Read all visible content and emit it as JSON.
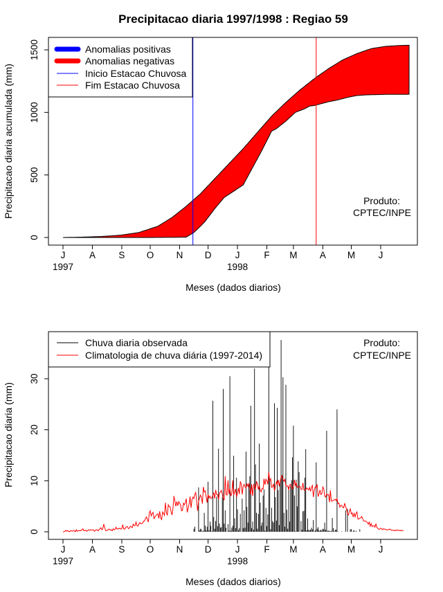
{
  "chart_data": [
    {
      "type": "area",
      "title": "Precipitacao diaria 1997/1998 : Regiao 59",
      "xlabel": "Meses (dados diarios)",
      "ylabel": "Precipitacao diaria acumulada (mm)",
      "ylim": [
        0,
        1500
      ],
      "yticks": [
        "0",
        "500",
        "1000",
        "1500"
      ],
      "month_ticks": [
        "J",
        "A",
        "S",
        "O",
        "N",
        "D",
        "J",
        "F",
        "M",
        "A",
        "M",
        "J"
      ],
      "year_labels": [
        "1997",
        "1998"
      ],
      "day_range": [
        0,
        365
      ],
      "legend": {
        "position": "top-left",
        "entries": [
          "Anomalias positivas",
          "Anomalias negativas",
          "Inicio Estacao Chuvosa",
          "Fim Estacao Chuvosa"
        ],
        "colors": [
          "#0000ff",
          "#ff0000",
          "#0000ff",
          "#ff0000"
        ]
      },
      "annotation": [
        "Produto:",
        "CPTEC/INPE"
      ],
      "inicio_estacao_day": 137,
      "fim_estacao_day": 267,
      "series": [
        {
          "name": "Climatologia acumulada",
          "x": [
            0,
            20,
            40,
            60,
            80,
            100,
            115,
            130,
            145,
            160,
            175,
            190,
            205,
            220,
            235,
            250,
            265,
            280,
            295,
            310,
            325,
            340,
            355,
            365
          ],
          "values": [
            0,
            3,
            8,
            18,
            40,
            90,
            160,
            250,
            350,
            470,
            590,
            710,
            840,
            970,
            1080,
            1180,
            1270,
            1350,
            1420,
            1470,
            1510,
            1528,
            1535,
            1537
          ]
        },
        {
          "name": "Observado acumulado",
          "x": [
            0,
            90,
            110,
            130,
            138,
            145,
            150,
            160,
            170,
            180,
            190,
            200,
            210,
            220,
            225,
            235,
            245,
            255,
            260,
            265,
            270,
            280,
            290,
            300,
            310,
            320,
            330,
            340,
            365
          ],
          "values": [
            0,
            0,
            1,
            3,
            40,
            90,
            130,
            230,
            320,
            370,
            420,
            560,
            700,
            850,
            870,
            930,
            1000,
            1030,
            1050,
            1055,
            1065,
            1085,
            1100,
            1120,
            1135,
            1140,
            1142,
            1144,
            1145
          ]
        }
      ]
    },
    {
      "type": "line",
      "xlabel": "Meses (dados diarios)",
      "ylabel": "Precipitacao diaria (mm)",
      "ylim": [
        0,
        38
      ],
      "yticks": [
        "0",
        "10",
        "20",
        "30"
      ],
      "month_ticks": [
        "J",
        "A",
        "S",
        "O",
        "N",
        "D",
        "J",
        "F",
        "M",
        "A",
        "M",
        "J"
      ],
      "year_labels": [
        "1997",
        "1998"
      ],
      "legend": {
        "position": "top-left",
        "entries": [
          "Chuva diaria observada",
          "Climatologia de chuva diária (1997-2014)"
        ],
        "colors": [
          "#000000",
          "#ff0000"
        ]
      },
      "annotation": [
        "Produto:",
        "CPTEC/INPE"
      ],
      "series": [
        {
          "name": "Chuva diaria observada",
          "color": "#000000",
          "values": [
            0,
            0,
            0,
            0,
            0,
            0,
            0,
            0,
            0,
            0,
            0,
            0,
            0,
            0,
            0,
            0,
            0,
            0,
            0,
            0,
            0,
            0,
            0,
            0,
            0,
            0,
            0,
            0,
            0,
            0,
            0,
            0,
            0,
            0,
            0,
            0,
            0,
            0,
            0,
            0,
            0,
            0,
            0,
            0,
            0,
            0,
            0,
            0,
            0,
            0,
            0,
            0,
            0,
            0,
            0,
            0,
            0,
            0,
            0,
            0,
            0,
            0,
            0,
            0,
            0,
            0,
            0,
            0,
            0,
            0,
            0,
            0,
            0,
            0,
            0,
            0,
            0,
            0,
            0,
            0,
            0,
            0,
            0,
            0,
            0,
            0,
            0,
            0,
            0,
            0,
            0,
            0,
            0,
            0,
            0,
            0,
            0,
            0,
            0,
            0,
            0,
            0,
            0,
            0,
            0,
            0,
            0,
            0,
            0,
            0,
            0,
            0,
            0,
            0,
            0,
            0,
            0,
            0,
            0,
            0,
            0,
            0,
            0,
            0,
            0,
            0,
            0,
            0,
            0,
            0,
            0,
            0,
            0,
            0,
            0,
            0,
            0,
            0,
            0.6,
            1.0,
            0,
            0,
            0,
            8.7,
            0.3,
            0.6,
            0.5,
            0.1,
            0.2,
            3.7,
            1.2,
            0.3,
            1.0,
            9.8,
            0.3,
            2.0,
            1.2,
            0.1,
            25.7,
            2.9,
            0.6,
            2.1,
            6.9,
            1.1,
            16.3,
            1.6,
            0.8,
            0.9,
            6.8,
            28.0,
            1.6,
            4.2,
            0.8,
            0,
            1.5,
            0.2,
            30.5,
            0.2,
            0.8,
            1.2,
            14.9,
            2.6,
            0.7,
            10.6,
            4.4,
            0.3,
            0.7,
            3.5,
            0,
            6.5,
            0.7,
            4.2,
            0.8,
            15.7,
            4.9,
            1.8,
            9.3,
            10.9,
            24.7,
            0.7,
            2.0,
            0.4,
            32.0,
            13.2,
            3.7,
            0.6,
            3.5,
            17.3,
            5.7,
            1.2,
            1.8,
            7.1,
            8.3,
            0.2,
            4.7,
            1.1,
            3.4,
            38.0,
            10.2,
            0.5,
            4.7,
            2.1,
            1.8,
            25.2,
            6.8,
            2.2,
            24.3,
            8.2,
            1.3,
            10.0,
            37.6,
            11.1,
            30.3,
            3.7,
            1.0,
            28.8,
            4.3,
            0.6,
            8.8,
            2.0,
            9.0,
            10.1,
            14.6,
            20.8,
            7.1,
            0.1,
            10.2,
            5.0,
            13.8,
            11.7,
            0,
            2.1,
            0.4,
            4.0,
            4.1,
            10.6,
            16.2,
            0.3,
            2.6,
            0.4,
            0.3,
            0.4,
            0.8,
            0.5,
            2.3,
            0.1,
            0.3,
            13.6,
            0.6,
            0.9,
            0.3,
            0.2,
            0.4,
            0.3,
            0.6,
            0.5,
            1.8,
            0.4,
            19.8,
            0.2,
            0.2,
            0.2,
            0.1,
            0.2,
            2.7,
            0.7,
            0.1,
            0.4,
            0.4,
            24.0,
            0.1,
            0,
            0,
            0,
            0.1,
            0,
            0,
            0,
            4.2,
            0,
            4.5,
            0,
            0,
            0.5,
            0.5,
            0,
            0.2,
            0.3,
            0,
            0.2,
            0,
            0,
            0,
            0.5,
            0,
            0,
            0,
            0,
            0,
            0,
            0,
            0,
            0,
            0
          ]
        },
        {
          "name": "Climatologia de chuva diária (1997-2014)",
          "color": "#ff0000",
          "values": [
            0,
            0,
            0.1,
            0.3,
            0.1,
            0.2,
            0.1,
            0,
            0.2,
            0.2,
            0.1,
            0.2,
            0.2,
            0,
            0.4,
            0.1,
            0.2,
            0.2,
            0.2,
            0.2,
            0.4,
            0.6,
            0.2,
            0.2,
            0.3,
            0.1,
            0.2,
            0.4,
            0.3,
            0.4,
            0.3,
            0.4,
            0.4,
            0.1,
            0.2,
            0.4,
            0.4,
            0.2,
            0.4,
            0.6,
            0.8,
            0.4,
            0.6,
            1.5,
            0.8,
            0.2,
            0.2,
            0.3,
            0.5,
            0.5,
            0.3,
            0.4,
            0.2,
            0.6,
            0.4,
            0.5,
            0.9,
            0.5,
            0.6,
            0.6,
            0.7,
            0.5,
            0.6,
            1.4,
            0.6,
            0.5,
            0.8,
            1.0,
            1.0,
            0.6,
            0.7,
            1.1,
            1.0,
            0.8,
            1.5,
            1.2,
            1.2,
            1.9,
            1.2,
            1.1,
            1.5,
            1.8,
            1.6,
            1.6,
            1.7,
            2.1,
            2.1,
            2.6,
            2.9,
            2.4,
            1.9,
            3.7,
            4.1,
            3.1,
            3.6,
            3.8,
            2.6,
            2.9,
            3.2,
            3.4,
            3.5,
            2.6,
            4.0,
            2.7,
            2.4,
            3.9,
            3.6,
            3.2,
            5.7,
            3.8,
            3.2,
            5.3,
            4.9,
            4.9,
            3.9,
            3.3,
            4.6,
            7.0,
            6.0,
            5.0,
            5.9,
            5.1,
            5.9,
            5.6,
            5.3,
            4.1,
            4.2,
            5.6,
            5.3,
            5.7,
            6.5,
            3.8,
            4.6,
            5.4,
            6.9,
            4.7,
            6.2,
            6.8,
            6.5,
            7.3,
            7.7,
            5.8,
            4.1,
            6.0,
            6.6,
            7.2,
            6.7,
            5.5,
            8.8,
            7.8,
            8.0,
            6.8,
            5.7,
            7.3,
            6.6,
            7.0,
            6.5,
            6.6,
            7.2,
            7.6,
            6.5,
            8.2,
            7.3,
            7.3,
            6.3,
            7.6,
            7.8,
            8.1,
            7.3,
            6.6,
            6.2,
            10.9,
            7.3,
            7.2,
            10.1,
            7.4,
            8.5,
            7.0,
            7.5,
            10.1,
            7.2,
            7.8,
            8.4,
            6.8,
            7.6,
            8.6,
            7.4,
            9.9,
            9.3,
            7.3,
            8.9,
            9.3,
            8.8,
            8.6,
            9.4,
            8.9,
            9.5,
            8.5,
            7.3,
            9.3,
            7.0,
            9.3,
            9.2,
            8.3,
            9.9,
            9.4,
            8.3,
            9.1,
            8.1,
            7.8,
            8.5,
            8.4,
            10.4,
            9.2,
            10.3,
            10.0,
            9.3,
            11.7,
            10.0,
            10.4,
            8.7,
            8.8,
            9.4,
            8.0,
            8.8,
            9.8,
            9.3,
            10.2,
            8.9,
            9.8,
            10.8,
            11.0,
            10.3,
            9.9,
            10.3,
            8.9,
            9.0,
            9.0,
            8.2,
            9.2,
            9.3,
            8.8,
            8.4,
            8.8,
            10.2,
            9.1,
            9.6,
            8.7,
            8.7,
            8.9,
            8.9,
            8.3,
            8.3,
            9.6,
            8.2,
            8.1,
            8.2,
            8.6,
            8.4,
            8.2,
            8.7,
            7.9,
            8.7,
            9.1,
            6.8,
            8.2,
            8.8,
            8.6,
            9.3,
            6.9,
            7.4,
            8.2,
            7.3,
            7.5,
            8.8,
            8.4,
            7.0,
            6.8,
            7.4,
            7.2,
            7.3,
            5.8,
            8.1,
            6.0,
            6.0,
            6.2,
            6.2,
            6.4,
            6.1,
            6.5,
            5.5,
            5.6,
            4.8,
            5.2,
            5.1,
            4.8,
            4.7,
            5.6,
            4.9,
            4.5,
            3.6,
            3.3,
            4.0,
            4.5,
            3.5,
            3.7,
            2.9,
            3.6,
            2.9,
            3.6,
            3.9,
            2.5,
            2.5,
            2.7,
            2.7,
            3.0,
            2.6,
            2.1,
            2.1,
            2.1,
            2.0,
            1.8,
            1.5,
            1.9,
            1.1,
            1.6,
            1.0,
            1.2,
            1.2,
            0.9,
            1.6,
            0.8,
            0.7,
            0.5,
            0.5,
            0.7,
            0.6,
            0.4,
            0.6,
            0.5,
            0.5,
            0.4,
            0.4,
            0.4,
            0.5,
            0.5,
            0.3,
            0.3,
            0.3,
            0.2,
            0.3,
            0.2,
            0.4,
            0.3,
            0.2,
            0.3,
            0.2,
            0.3,
            0.2,
            0.2
          ]
        }
      ]
    }
  ]
}
